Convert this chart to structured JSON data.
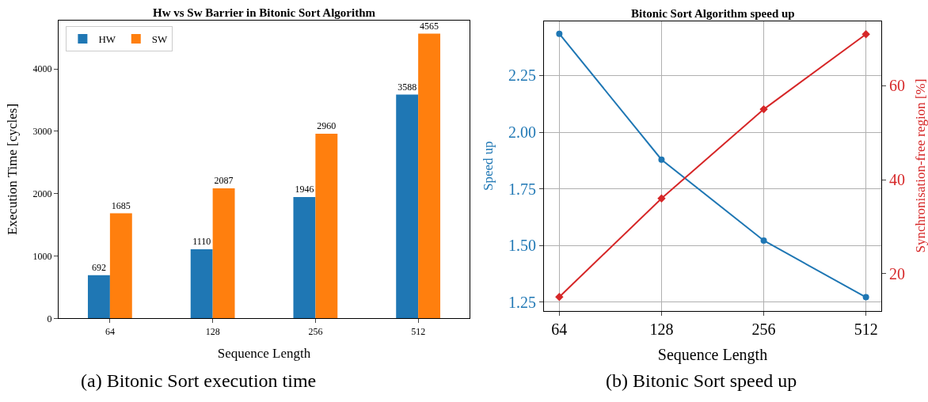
{
  "chart_data": [
    {
      "type": "bar",
      "title": "Hw vs Sw Barrier in Bitonic Sort Algorithm",
      "xlabel": "Sequence Length",
      "ylabel": "Execution Time [cycles]",
      "categories": [
        "64",
        "128",
        "256",
        "512"
      ],
      "series": [
        {
          "name": "HW",
          "color": "#1f77b4",
          "values": [
            692,
            1110,
            1946,
            3588
          ]
        },
        {
          "name": "SW",
          "color": "#ff7f0e",
          "values": [
            1685,
            2087,
            2960,
            4565
          ]
        }
      ],
      "ylim": [
        0,
        4780
      ],
      "yticks": [
        0,
        1000,
        2000,
        3000,
        4000
      ],
      "data_labels": true,
      "legend": "top left",
      "grid": false,
      "annotations": [
        "(a) Bitonic Sort execution time"
      ]
    },
    {
      "type": "line",
      "title": "Bitonic Sort Algorithm speed up",
      "xlabel": "Sequence Length",
      "ylabel": "Speed up",
      "y2label": "Synchronisation-free region [%]",
      "categories": [
        "64",
        "128",
        "256",
        "512"
      ],
      "series": [
        {
          "color": "#1f77b4",
          "values": [
            2.434,
            1.879,
            1.522,
            1.272
          ],
          "marker": "circle"
        },
        {
          "color": "#d62728",
          "values": [
            15,
            36,
            55,
            71
          ],
          "axis": "y2",
          "marker": "diamond"
        }
      ],
      "ylim": [
        1.213,
        2.49
      ],
      "yticks": [
        {
          "value": 1.25,
          "label": "1.25"
        },
        {
          "value": 1.5,
          "label": "1.50"
        },
        {
          "value": 1.75,
          "label": "1.75"
        },
        {
          "value": 2.0,
          "label": "2.00"
        },
        {
          "value": 2.25,
          "label": "2.25"
        }
      ],
      "y2lim": [
        12.1,
        73.8
      ],
      "y2ticks": [
        20,
        40,
        60
      ],
      "grid": true,
      "legend": false,
      "line_style": "solid",
      "annotations": [
        "(b) Bitonic Sort speed up"
      ]
    }
  ]
}
